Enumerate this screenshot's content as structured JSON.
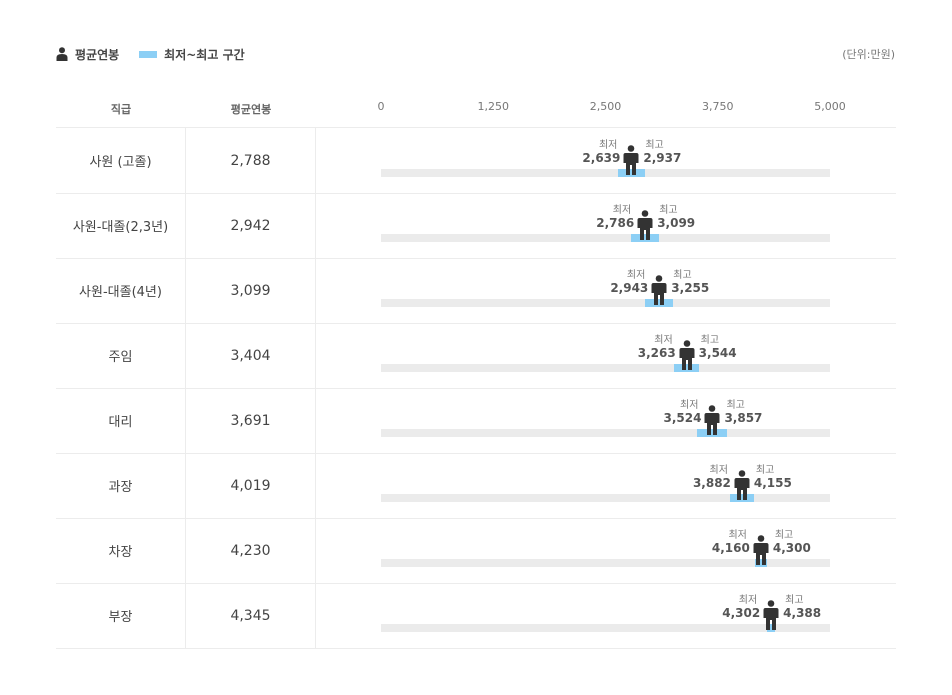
{
  "legend": {
    "avg_label": "평균연봉",
    "range_label": "최저~최고 구간",
    "unit": "(단위:만원)"
  },
  "header": {
    "rank": "직급",
    "avg": "평균연봉"
  },
  "colors": {
    "range": "#8ccff5",
    "track": "#ebebeb",
    "person": "#333333"
  },
  "chart_data": {
    "type": "bar",
    "xlim": [
      0,
      5000
    ],
    "ticks": [
      0,
      1250,
      2500,
      3750,
      5000
    ],
    "tick_labels": [
      "0",
      "1,250",
      "2,500",
      "3,750",
      "5,000"
    ],
    "min_label": "최저",
    "max_label": "최고",
    "rows": [
      {
        "rank": "사원 (고졸)",
        "avg": 2788,
        "avg_label": "2,788",
        "min": 2639,
        "min_label": "2,639",
        "max": 2937,
        "max_label": "2,937"
      },
      {
        "rank": "사원-대졸(2,3년)",
        "avg": 2942,
        "avg_label": "2,942",
        "min": 2786,
        "min_label": "2,786",
        "max": 3099,
        "max_label": "3,099"
      },
      {
        "rank": "사원-대졸(4년)",
        "avg": 3099,
        "avg_label": "3,099",
        "min": 2943,
        "min_label": "2,943",
        "max": 3255,
        "max_label": "3,255"
      },
      {
        "rank": "주임",
        "avg": 3404,
        "avg_label": "3,404",
        "min": 3263,
        "min_label": "3,263",
        "max": 3544,
        "max_label": "3,544"
      },
      {
        "rank": "대리",
        "avg": 3691,
        "avg_label": "3,691",
        "min": 3524,
        "min_label": "3,524",
        "max": 3857,
        "max_label": "3,857"
      },
      {
        "rank": "과장",
        "avg": 4019,
        "avg_label": "4,019",
        "min": 3882,
        "min_label": "3,882",
        "max": 4155,
        "max_label": "4,155"
      },
      {
        "rank": "차장",
        "avg": 4230,
        "avg_label": "4,230",
        "min": 4160,
        "min_label": "4,160",
        "max": 4300,
        "max_label": "4,300"
      },
      {
        "rank": "부장",
        "avg": 4345,
        "avg_label": "4,345",
        "min": 4302,
        "min_label": "4,302",
        "max": 4388,
        "max_label": "4,388"
      }
    ]
  }
}
